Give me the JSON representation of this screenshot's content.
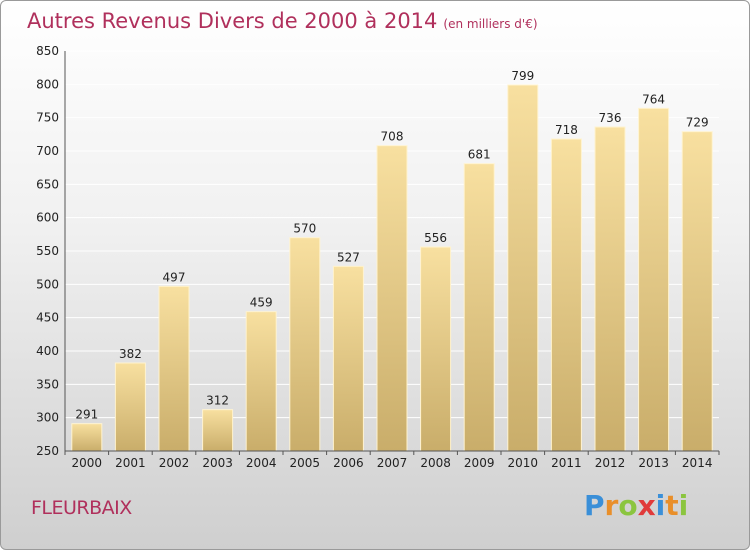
{
  "header": {
    "title": "Autres Revenus Divers de 2000 à 2014",
    "subtitle": "(en milliers d'€)"
  },
  "footer": {
    "place": "FLEURBAIX",
    "logo": "Proxiti"
  },
  "colors": {
    "title": "#b0305c",
    "bar_light": "#f8e0a0",
    "bar_dark": "#c9ad6a",
    "bar_border": "#fff3cf",
    "logo": [
      "#3a8fd8",
      "#e98f2a",
      "#8bc53f",
      "#e03a3a",
      "#3a8fd8",
      "#e98f2a",
      "#8bc53f"
    ]
  },
  "chart_data": {
    "type": "bar",
    "categories": [
      "2000",
      "2001",
      "2002",
      "2003",
      "2004",
      "2005",
      "2006",
      "2007",
      "2008",
      "2009",
      "2010",
      "2011",
      "2012",
      "2013",
      "2014"
    ],
    "values": [
      291,
      382,
      497,
      312,
      459,
      570,
      527,
      708,
      556,
      681,
      799,
      718,
      736,
      764,
      729
    ],
    "ylim": [
      250,
      850
    ],
    "yticks": [
      250,
      300,
      350,
      400,
      450,
      500,
      550,
      600,
      650,
      700,
      750,
      800,
      850
    ],
    "grid": true,
    "xlabel": "",
    "ylabel": ""
  }
}
